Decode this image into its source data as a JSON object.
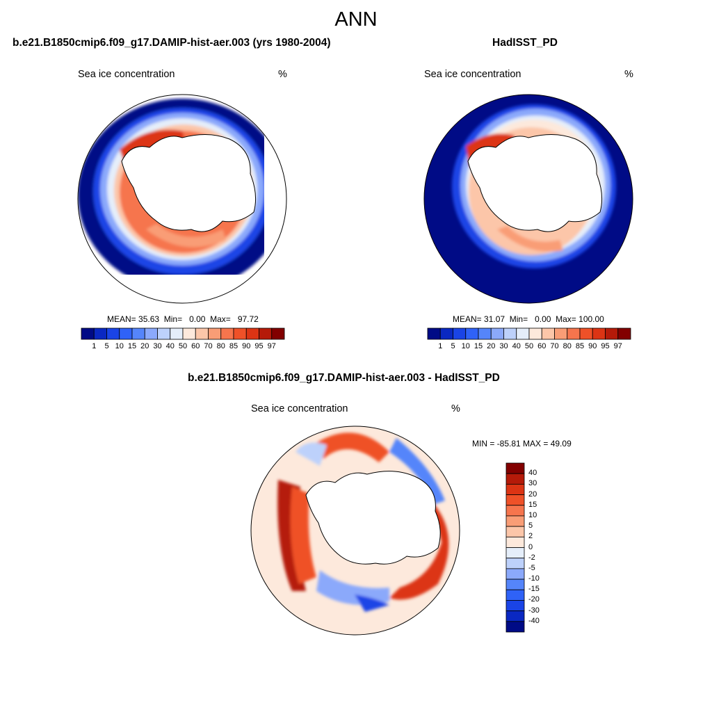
{
  "title": "ANN",
  "colors": {
    "abs_scale": [
      "#000b86",
      "#0a28c2",
      "#1a44e6",
      "#2f62f7",
      "#5585fa",
      "#8ba9fb",
      "#bdd1fb",
      "#e5eefa",
      "#fde9dc",
      "#fcc6a9",
      "#f99d76",
      "#f6754d",
      "#ef5128",
      "#dc3414",
      "#b51a09",
      "#820000"
    ],
    "diff_scale": [
      "#000b86",
      "#0a28c2",
      "#1a44e6",
      "#2f62f7",
      "#5585fa",
      "#8ba9fb",
      "#bdd1fb",
      "#e5eefa",
      "#fde9dc",
      "#fcc6a9",
      "#f99d76",
      "#f6754d",
      "#ef5128",
      "#dc3414",
      "#b51a09",
      "#820000"
    ]
  },
  "panels": {
    "model": {
      "title": "b.e21.B1850cmip6.f09_g17.DAMIP-hist-aer.003 (yrs 1980-2004)",
      "variable": "Sea ice concentration",
      "units": "%",
      "mean_label": "MEAN=",
      "mean": "35.63",
      "min_label": "Min=",
      "min": "0.00",
      "max_label": "Max=",
      "max": "97.72"
    },
    "obs": {
      "title": "HadISST_PD",
      "variable": "Sea ice concentration",
      "units": "%",
      "mean_label": "MEAN=",
      "mean": "31.07",
      "min_label": "Min=",
      "min": "0.00",
      "max_label": "Max=",
      "max": "100.00"
    },
    "diff": {
      "title": "b.e21.B1850cmip6.f09_g17.DAMIP-hist-aer.003 - HadISST_PD",
      "variable": "Sea ice concentration",
      "units": "%",
      "minmax": "MIN = -85.81 MAX =  49.09"
    }
  },
  "abs_colorbar_ticks": [
    "1",
    "5",
    "10",
    "15",
    "20",
    "30",
    "40",
    "50",
    "60",
    "70",
    "80",
    "85",
    "90",
    "95",
    "97"
  ],
  "diff_colorbar_ticks": [
    "40",
    "30",
    "20",
    "15",
    "10",
    "5",
    "2",
    "0",
    "-2",
    "-5",
    "-10",
    "-15",
    "-20",
    "-30",
    "-40"
  ]
}
